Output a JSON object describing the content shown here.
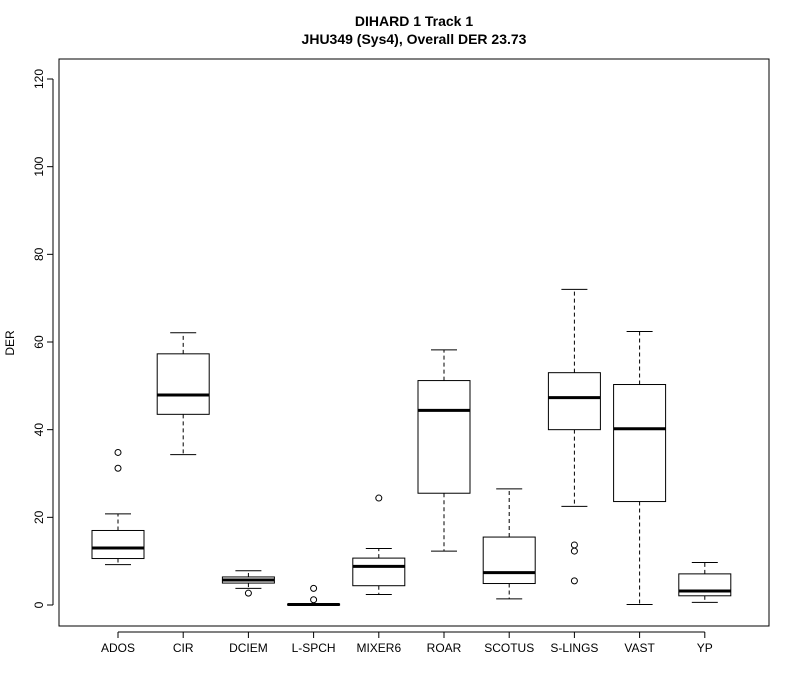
{
  "chart_data": {
    "type": "boxplot",
    "title": "DIHARD 1 Track 1",
    "subtitle": "JHU349 (Sys4), Overall DER 23.73",
    "xlabel": "",
    "ylabel": "DER",
    "ylim": [
      -5,
      125
    ],
    "yticks": [
      0,
      20,
      40,
      60,
      80,
      100,
      120
    ],
    "ytick_labels": [
      "0",
      "20",
      "40",
      "60",
      "80",
      "100",
      "120"
    ],
    "grid": false,
    "legend": "none",
    "colors": {
      "stroke": "#000000",
      "box_fill": "#ffffff",
      "background": "#ffffff"
    },
    "categories": [
      "ADOS",
      "CIR",
      "DCIEM",
      "L-SPCH",
      "MIXER6",
      "ROAR",
      "SCOTUS",
      "S-LINGS",
      "VAST",
      "YP"
    ],
    "boxes": [
      {
        "category": "ADOS",
        "whisker_low": 9.2,
        "q1": 10.6,
        "median": 13.0,
        "q3": 17.0,
        "whisker_high": 20.8,
        "outliers": [
          31.2,
          34.8
        ]
      },
      {
        "category": "CIR",
        "whisker_low": 34.3,
        "q1": 43.5,
        "median": 47.9,
        "q3": 57.3,
        "whisker_high": 62.1,
        "outliers": []
      },
      {
        "category": "DCIEM",
        "whisker_low": 3.8,
        "q1": 5.0,
        "median": 5.7,
        "q3": 6.4,
        "whisker_high": 7.8,
        "outliers": [
          2.7
        ]
      },
      {
        "category": "L-SPCH",
        "whisker_low": 0.0,
        "q1": 0.0,
        "median": 0.1,
        "q3": 0.2,
        "whisker_high": 0.3,
        "outliers": [
          1.2,
          3.8
        ]
      },
      {
        "category": "MIXER6",
        "whisker_low": 2.4,
        "q1": 4.4,
        "median": 8.8,
        "q3": 10.7,
        "whisker_high": 12.9,
        "outliers": [
          24.4
        ]
      },
      {
        "category": "ROAR",
        "whisker_low": 12.3,
        "q1": 25.5,
        "median": 44.4,
        "q3": 51.2,
        "whisker_high": 58.2,
        "outliers": []
      },
      {
        "category": "SCOTUS",
        "whisker_low": 1.4,
        "q1": 4.9,
        "median": 7.4,
        "q3": 15.5,
        "whisker_high": 26.5,
        "outliers": []
      },
      {
        "category": "S-LINGS",
        "whisker_low": 22.5,
        "q1": 40.0,
        "median": 47.3,
        "q3": 53.0,
        "whisker_high": 72.0,
        "outliers": [
          5.5,
          12.3,
          13.7
        ]
      },
      {
        "category": "VAST",
        "whisker_low": 0.1,
        "q1": 23.6,
        "median": 40.2,
        "q3": 50.3,
        "whisker_high": 62.4,
        "outliers": []
      },
      {
        "category": "YP",
        "whisker_low": 0.6,
        "q1": 2.1,
        "median": 3.2,
        "q3": 7.1,
        "whisker_high": 9.7,
        "outliers": []
      }
    ]
  }
}
